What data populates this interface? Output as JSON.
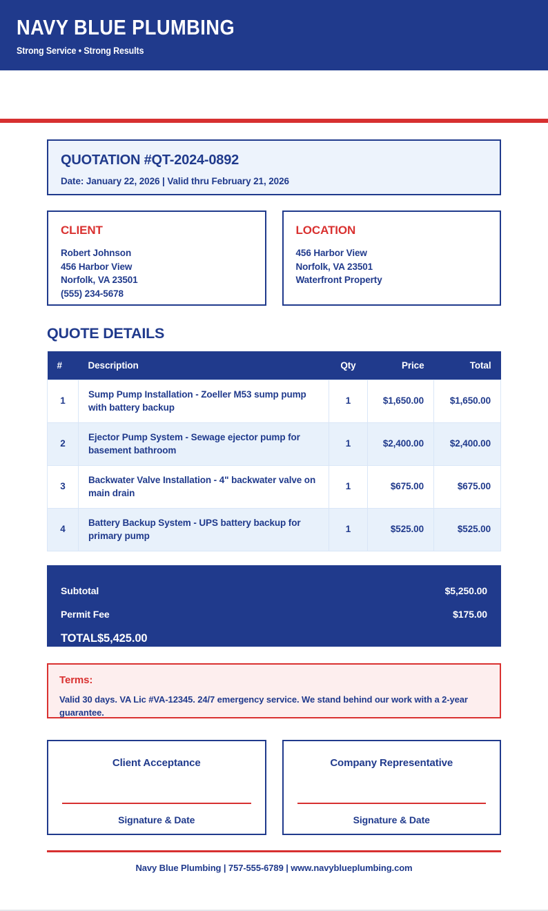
{
  "theme": {
    "navy": "#203a8c",
    "red": "#d73030",
    "banner_bg": "#edf3fc",
    "alt_row_bg": "#e8f1fb",
    "terms_bg": "#fdeeee"
  },
  "header": {
    "company_name": "NAVY BLUE PLUMBING",
    "tagline": "Strong Service • Strong Results"
  },
  "quotation": {
    "title": "QUOTATION #QT-2024-0892",
    "date_line": "Date: January 22, 2026 | Valid thru February 21, 2026"
  },
  "client": {
    "heading": "CLIENT",
    "lines": [
      "Robert Johnson",
      "456 Harbor View",
      "Norfolk, VA 23501",
      "(555) 234-5678"
    ]
  },
  "location": {
    "heading": "LOCATION",
    "lines": [
      "456 Harbor View",
      "Norfolk, VA 23501",
      "Waterfront Property"
    ]
  },
  "quote_details": {
    "heading": "QUOTE DETAILS",
    "columns": [
      "#",
      "Description",
      "Qty",
      "Price",
      "Total"
    ],
    "rows": [
      {
        "num": "1",
        "description": "Sump Pump Installation - Zoeller M53 sump pump with battery backup",
        "qty": "1",
        "price": "$1,650.00",
        "total": "$1,650.00"
      },
      {
        "num": "2",
        "description": "Ejector Pump System - Sewage ejector pump for basement bathroom",
        "qty": "1",
        "price": "$2,400.00",
        "total": "$2,400.00"
      },
      {
        "num": "3",
        "description": "Backwater Valve Installation - 4\" backwater valve on main drain",
        "qty": "1",
        "price": "$675.00",
        "total": "$675.00"
      },
      {
        "num": "4",
        "description": "Battery Backup System - UPS battery backup for primary pump",
        "qty": "1",
        "price": "$525.00",
        "total": "$525.00"
      }
    ]
  },
  "totals": {
    "subtotal_label": "Subtotal",
    "subtotal_value": "$5,250.00",
    "fee_label": "Permit Fee",
    "fee_value": "$175.00",
    "total_label": "TOTAL",
    "total_value": "$5,425.00"
  },
  "terms": {
    "heading": "Terms:",
    "body": "Valid 30 days. VA Lic #VA-12345. 24/7 emergency service. We stand behind our work with a 2-year guarantee."
  },
  "signatures": [
    {
      "title": "Client Acceptance",
      "caption": "Signature & Date"
    },
    {
      "title": "Company Representative",
      "caption": "Signature & Date"
    }
  ],
  "footer": {
    "text": "Navy Blue Plumbing | 757-555-6789 | www.navyblueplumbing.com"
  }
}
